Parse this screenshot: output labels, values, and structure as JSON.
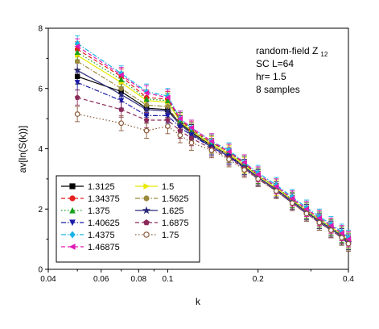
{
  "chart_data": {
    "type": "line",
    "xlabel": "k",
    "ylabel": "av[ln(S(k))]",
    "xscale": "log",
    "xlim": [
      0.04,
      0.4
    ],
    "ylim": [
      0,
      8
    ],
    "xticks": [
      "0.04",
      "0.06",
      "0.08",
      "0.1",
      "0.2",
      "0.4"
    ],
    "yticks": [
      "0",
      "2",
      "4",
      "6",
      "8"
    ],
    "grid": false,
    "legend_position": "bottom-left",
    "annotations": {
      "line1": "random-field Z",
      "line1_sub": "12",
      "line2": "SC  L=64",
      "line3": "hr= 1.5",
      "line4": "8 samples"
    },
    "x": [
      0.05,
      0.07,
      0.085,
      0.1,
      0.11,
      0.12,
      0.14,
      0.16,
      0.18,
      0.2,
      0.23,
      0.26,
      0.29,
      0.32,
      0.35,
      0.38,
      0.4
    ],
    "series": [
      {
        "name": "1.3125",
        "color": "#000000",
        "marker": "square",
        "dash": "solid",
        "values": [
          6.4,
          5.9,
          5.35,
          5.3,
          4.85,
          4.55,
          4.1,
          3.8,
          3.4,
          3.05,
          2.65,
          2.25,
          1.9,
          1.6,
          1.35,
          1.1,
          0.9
        ]
      },
      {
        "name": "1.5",
        "color": "#e8e800",
        "marker": "triangle-right",
        "dash": "solid",
        "values": [
          7.1,
          6.2,
          5.6,
          5.55,
          4.9,
          4.6,
          4.15,
          3.85,
          3.45,
          3.1,
          2.7,
          2.3,
          1.95,
          1.65,
          1.4,
          1.15,
          0.95
        ]
      },
      {
        "name": "1.34375",
        "color": "#e61e1e",
        "marker": "circle",
        "dash": "dash",
        "values": [
          7.3,
          6.4,
          5.7,
          5.65,
          4.95,
          4.65,
          4.2,
          3.9,
          3.5,
          3.15,
          2.75,
          2.35,
          2.0,
          1.7,
          1.45,
          1.2,
          1.0
        ]
      },
      {
        "name": "1.5625",
        "color": "#9c8a3c",
        "marker": "circle",
        "dash": "dashdot",
        "values": [
          6.9,
          6.0,
          5.45,
          5.4,
          4.8,
          4.5,
          4.1,
          3.8,
          3.4,
          3.05,
          2.65,
          2.25,
          1.9,
          1.6,
          1.35,
          1.1,
          0.9
        ]
      },
      {
        "name": "1.375",
        "color": "#1aa01a",
        "marker": "triangle-up",
        "dash": "dot",
        "values": [
          7.2,
          6.3,
          5.65,
          5.6,
          4.95,
          4.6,
          4.2,
          3.9,
          3.5,
          3.1,
          2.75,
          2.3,
          1.95,
          1.65,
          1.4,
          1.15,
          0.95
        ]
      },
      {
        "name": "1.625",
        "color": "#2a2a7a",
        "marker": "star",
        "dash": "solid",
        "values": [
          6.6,
          5.8,
          5.3,
          5.25,
          4.8,
          4.5,
          4.05,
          3.75,
          3.4,
          3.05,
          2.65,
          2.25,
          1.9,
          1.6,
          1.35,
          1.1,
          0.9
        ]
      },
      {
        "name": "1.40625",
        "color": "#1a1aa8",
        "marker": "triangle-down",
        "dash": "dashdot",
        "values": [
          6.2,
          5.6,
          5.1,
          5.1,
          4.7,
          4.45,
          4.05,
          3.75,
          3.35,
          3.0,
          2.6,
          2.2,
          1.85,
          1.55,
          1.3,
          1.05,
          0.85
        ]
      },
      {
        "name": "1.6875",
        "color": "#8a2a5a",
        "marker": "pentagon",
        "dash": "dash",
        "values": [
          5.7,
          5.3,
          4.95,
          4.95,
          4.6,
          4.35,
          4.0,
          3.7,
          3.35,
          3.0,
          2.6,
          2.2,
          1.85,
          1.55,
          1.3,
          1.05,
          0.85
        ]
      },
      {
        "name": "1.4375",
        "color": "#1ab4e6",
        "marker": "diamond",
        "dash": "dashdot",
        "values": [
          7.5,
          6.5,
          5.9,
          5.75,
          5.0,
          4.7,
          4.25,
          3.95,
          3.55,
          3.2,
          2.8,
          2.4,
          2.05,
          1.75,
          1.5,
          1.25,
          1.05
        ]
      },
      {
        "name": "1.75",
        "color": "#8a5a3a",
        "marker": "circle-open",
        "dash": "dot",
        "values": [
          5.15,
          4.85,
          4.6,
          4.75,
          4.45,
          4.2,
          3.95,
          3.65,
          3.3,
          3.0,
          2.6,
          2.2,
          1.85,
          1.55,
          1.3,
          1.05,
          0.85
        ]
      },
      {
        "name": "1.46875",
        "color": "#e01ab4",
        "marker": "triangle-left",
        "dash": "dash",
        "values": [
          7.4,
          6.45,
          5.85,
          5.7,
          5.0,
          4.7,
          4.25,
          3.9,
          3.55,
          3.15,
          2.75,
          2.35,
          2.0,
          1.7,
          1.45,
          1.2,
          1.0
        ]
      }
    ],
    "error_bar": 0.25
  }
}
